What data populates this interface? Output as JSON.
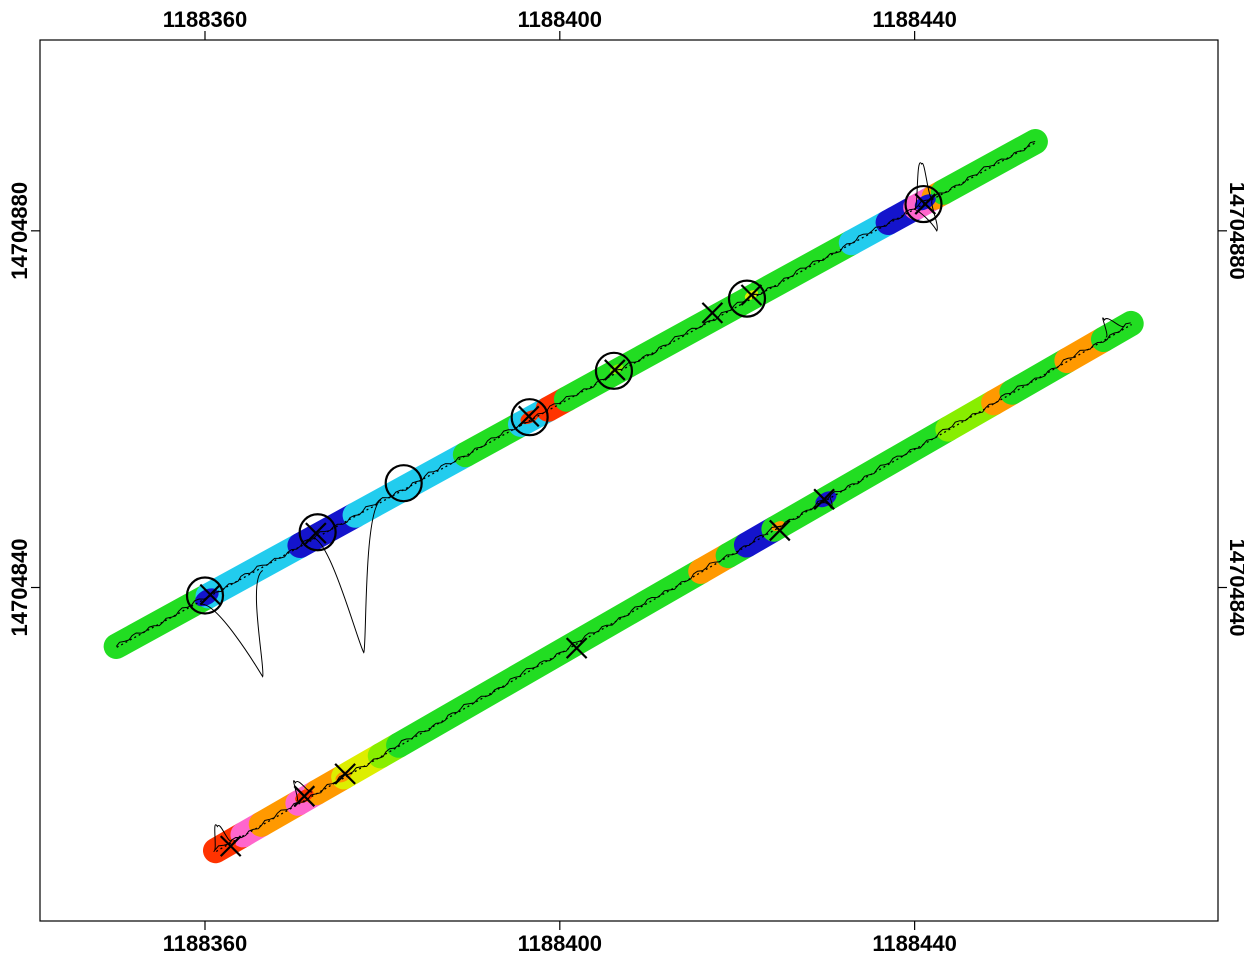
{
  "chart_data": {
    "type": "scatter",
    "title": "",
    "xlabel": "",
    "ylabel": "",
    "xlim": [
      1188341.4,
      1188474.2
    ],
    "ylim": [
      14704802.6,
      14704901.4
    ],
    "x_ticks": [
      {
        "value": 1188360,
        "label": "1188360"
      },
      {
        "value": 1188400,
        "label": "1188400"
      },
      {
        "value": 1188440,
        "label": "1188440"
      }
    ],
    "y_ticks": [
      {
        "value": 14704840,
        "label": "14704840"
      },
      {
        "value": 14704880,
        "label": "14704880"
      }
    ],
    "grid": false,
    "legend": "none",
    "colors": {
      "green": "#22dd22",
      "cyan": "#22ccee",
      "blue": "#1414cc",
      "orange": "#ff9900",
      "red": "#ff3300",
      "pink": "#ff66cc",
      "yellow": "#ddee00",
      "lightgreen": "#88ee00"
    },
    "tracks": [
      {
        "start": [
          1188350.0,
          14704833.4
        ],
        "end": [
          1188453.6,
          14704890.0
        ],
        "width": 1.5,
        "segments": [
          {
            "from": 0.0,
            "to": 0.1,
            "color": "green"
          },
          {
            "from": 0.1,
            "to": 0.2,
            "color": "cyan"
          },
          {
            "from": 0.2,
            "to": 0.26,
            "color": "blue"
          },
          {
            "from": 0.26,
            "to": 0.38,
            "color": "cyan"
          },
          {
            "from": 0.38,
            "to": 0.44,
            "color": "green"
          },
          {
            "from": 0.44,
            "to": 0.47,
            "color": "cyan"
          },
          {
            "from": 0.47,
            "to": 0.49,
            "color": "red"
          },
          {
            "from": 0.49,
            "to": 0.8,
            "color": "green"
          },
          {
            "from": 0.8,
            "to": 0.84,
            "color": "cyan"
          },
          {
            "from": 0.84,
            "to": 0.87,
            "color": "blue"
          },
          {
            "from": 0.87,
            "to": 0.89,
            "color": "pink"
          },
          {
            "from": 0.89,
            "to": 0.9,
            "color": "orange"
          },
          {
            "from": 0.9,
            "to": 1.0,
            "color": "green"
          }
        ],
        "highlights": [
          {
            "x": 1188360.2,
            "y": 14704838.9,
            "radius": 0.9,
            "color": "blue"
          },
          {
            "x": 1188372.5,
            "y": 14704846.0,
            "radius": 0.9,
            "color": "blue"
          },
          {
            "x": 1188396.6,
            "y": 14704859.1,
            "radius": 0.7,
            "color": "red"
          },
          {
            "x": 1188406.4,
            "y": 14704864.5,
            "radius": 0.5,
            "color": "lightgreen"
          },
          {
            "x": 1188421.6,
            "y": 14704872.8,
            "radius": 0.5,
            "color": "yellow"
          },
          {
            "x": 1188441.2,
            "y": 14704883.2,
            "radius": 0.8,
            "color": "blue"
          }
        ],
        "circles": [
          {
            "x": 1188360.0,
            "y": 14704839.1
          },
          {
            "x": 1188372.7,
            "y": 14704846.2
          },
          {
            "x": 1188382.4,
            "y": 14704851.7
          },
          {
            "x": 1188396.6,
            "y": 14704859.1
          },
          {
            "x": 1188406.1,
            "y": 14704864.3
          },
          {
            "x": 1188421.1,
            "y": 14704872.4
          },
          {
            "x": 1188441.0,
            "y": 14704883.0
          }
        ],
        "crosses": [
          {
            "x": 1188360.6,
            "y": 14704839.2
          },
          {
            "x": 1188372.5,
            "y": 14704846.1
          },
          {
            "x": 1188396.5,
            "y": 14704859.2
          },
          {
            "x": 1188406.2,
            "y": 14704864.4
          },
          {
            "x": 1188417.2,
            "y": 14704870.8
          },
          {
            "x": 1188421.6,
            "y": 14704872.8
          },
          {
            "x": 1188441.2,
            "y": 14704883.0
          }
        ],
        "bumps": [
          {
            "x": 1188363.0,
            "y": 14704840.0,
            "dx": 3.5,
            "dy": -10.0,
            "halfwidth": 4.0
          },
          {
            "x": 1188375.9,
            "y": 14704847.7,
            "dx": 2.0,
            "dy": -15.0,
            "halfwidth": 4.5
          },
          {
            "x": 1188441.0,
            "y": 14704883.0,
            "dx": -0.2,
            "dy": 4.5,
            "halfwidth": 1.2
          },
          {
            "x": 1188441.0,
            "y": 14704883.0,
            "dx": 1.5,
            "dy": -3.0,
            "halfwidth": 1.2
          }
        ]
      },
      {
        "start": [
          1188361.2,
          14704810.5
        ],
        "end": [
          1188464.4,
          14704869.6
        ],
        "width": 1.5,
        "segments": [
          {
            "from": 0.0,
            "to": 0.03,
            "color": "red"
          },
          {
            "from": 0.03,
            "to": 0.05,
            "color": "pink"
          },
          {
            "from": 0.05,
            "to": 0.09,
            "color": "orange"
          },
          {
            "from": 0.09,
            "to": 0.11,
            "color": "pink"
          },
          {
            "from": 0.11,
            "to": 0.14,
            "color": "orange"
          },
          {
            "from": 0.14,
            "to": 0.18,
            "color": "yellow"
          },
          {
            "from": 0.18,
            "to": 0.2,
            "color": "lightgreen"
          },
          {
            "from": 0.2,
            "to": 0.53,
            "color": "green"
          },
          {
            "from": 0.53,
            "to": 0.56,
            "color": "orange"
          },
          {
            "from": 0.56,
            "to": 0.58,
            "color": "green"
          },
          {
            "from": 0.58,
            "to": 0.61,
            "color": "blue"
          },
          {
            "from": 0.61,
            "to": 0.8,
            "color": "green"
          },
          {
            "from": 0.8,
            "to": 0.85,
            "color": "lightgreen"
          },
          {
            "from": 0.85,
            "to": 0.87,
            "color": "orange"
          },
          {
            "from": 0.87,
            "to": 0.93,
            "color": "green"
          },
          {
            "from": 0.93,
            "to": 0.97,
            "color": "orange"
          },
          {
            "from": 0.97,
            "to": 1.0,
            "color": "green"
          }
        ],
        "highlights": [
          {
            "x": 1188362.6,
            "y": 14704811.1,
            "radius": 0.6,
            "color": "red"
          },
          {
            "x": 1188371.2,
            "y": 14704816.6,
            "radius": 0.7,
            "color": "red"
          },
          {
            "x": 1188375.6,
            "y": 14704818.8,
            "radius": 0.6,
            "color": "orange"
          },
          {
            "x": 1188424.6,
            "y": 14704846.9,
            "radius": 0.5,
            "color": "orange"
          },
          {
            "x": 1188430.0,
            "y": 14704849.9,
            "radius": 0.8,
            "color": "blue"
          }
        ],
        "circles": [],
        "crosses": [
          {
            "x": 1188362.9,
            "y": 14704811.0
          },
          {
            "x": 1188371.2,
            "y": 14704816.6
          },
          {
            "x": 1188375.8,
            "y": 14704819.1
          },
          {
            "x": 1188401.9,
            "y": 14704833.2
          },
          {
            "x": 1188424.8,
            "y": 14704846.4
          },
          {
            "x": 1188429.8,
            "y": 14704849.9
          }
        ],
        "bumps": [
          {
            "x": 1188362.0,
            "y": 14704811.0,
            "dx": -0.6,
            "dy": 2.2,
            "halfwidth": 1.2
          },
          {
            "x": 1188371.2,
            "y": 14704816.6,
            "dx": -1.0,
            "dy": 1.5,
            "halfwidth": 1.0
          },
          {
            "x": 1188462.6,
            "y": 14704868.7,
            "dx": -1.2,
            "dy": 1.3,
            "halfwidth": 1.2
          },
          {
            "x": 1188429.8,
            "y": 14704849.9,
            "dx": 0.8,
            "dy": -1.0,
            "halfwidth": 0.9
          }
        ]
      }
    ]
  }
}
